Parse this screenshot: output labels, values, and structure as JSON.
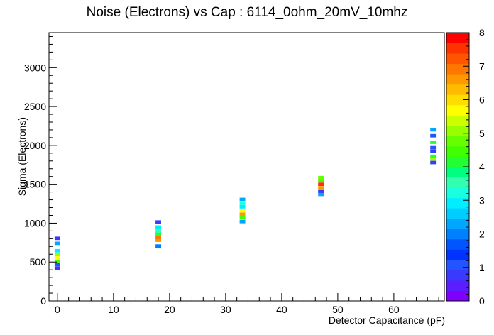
{
  "chart_data": {
    "type": "heatmap",
    "title": "Noise (Electrons) vs Cap : 6114_0ohm_20mV_10mhz",
    "xlabel": "Detector Capacitance (pF)",
    "ylabel": "Sigma (Electrons)",
    "xlim": [
      -1.5,
      69
    ],
    "ylim": [
      0,
      3450
    ],
    "x_ticks": [
      0,
      10,
      20,
      30,
      40,
      50,
      60
    ],
    "y_ticks": [
      0,
      500,
      1000,
      1500,
      2000,
      2500,
      3000
    ],
    "z_range": [
      0,
      8
    ],
    "z_ticks": [
      0,
      1,
      2,
      3,
      4,
      5,
      6,
      7,
      8
    ],
    "bin_width_x": 1.0,
    "bin_height_y": 44,
    "columns": [
      {
        "x": 0,
        "bins": [
          {
            "y": 420,
            "z": 0.8
          },
          {
            "y": 465,
            "z": 1.0
          },
          {
            "y": 510,
            "z": 4.5
          },
          {
            "y": 560,
            "z": 5.8
          },
          {
            "y": 600,
            "z": 5.2
          },
          {
            "y": 645,
            "z": 3.0
          },
          {
            "y": 740,
            "z": 2.3
          },
          {
            "y": 805,
            "z": 0.9
          }
        ]
      },
      {
        "x": 18,
        "bins": [
          {
            "y": 705,
            "z": 2.1
          },
          {
            "y": 780,
            "z": 6.7
          },
          {
            "y": 815,
            "z": 6.9
          },
          {
            "y": 860,
            "z": 4.2
          },
          {
            "y": 900,
            "z": 3.5
          },
          {
            "y": 950,
            "z": 2.8
          },
          {
            "y": 1015,
            "z": 0.9
          }
        ]
      },
      {
        "x": 33,
        "bins": [
          {
            "y": 1020,
            "z": 2.2
          },
          {
            "y": 1070,
            "z": 4.6
          },
          {
            "y": 1115,
            "z": 6.7
          },
          {
            "y": 1160,
            "z": 5.8
          },
          {
            "y": 1210,
            "z": 2.8
          },
          {
            "y": 1255,
            "z": 3.3
          },
          {
            "y": 1305,
            "z": 2.2
          }
        ]
      },
      {
        "x": 47,
        "bins": [
          {
            "y": 1370,
            "z": 2.3
          },
          {
            "y": 1410,
            "z": 0.9
          },
          {
            "y": 1455,
            "z": 6.6
          },
          {
            "y": 1500,
            "z": 7.6
          },
          {
            "y": 1545,
            "z": 4.5
          },
          {
            "y": 1585,
            "z": 4.8
          }
        ]
      },
      {
        "x": 67,
        "bins": [
          {
            "y": 1780,
            "z": 0.9
          },
          {
            "y": 1825,
            "z": 5.2
          },
          {
            "y": 1860,
            "z": 4.0
          },
          {
            "y": 1925,
            "z": 0.8
          },
          {
            "y": 1970,
            "z": 1.0
          },
          {
            "y": 2040,
            "z": 4.3
          },
          {
            "y": 2125,
            "z": 1.0
          },
          {
            "y": 2200,
            "z": 2.3
          }
        ]
      }
    ],
    "palette": [
      "#7f00ff",
      "#5a1fff",
      "#3a3aff",
      "#2255ff",
      "#0033ff",
      "#0055ff",
      "#0080ff",
      "#00a6ff",
      "#00ccff",
      "#00eeff",
      "#19ffe0",
      "#33ffb0",
      "#00ff80",
      "#22ff33",
      "#40ff00",
      "#66ff00",
      "#99ff00",
      "#ccff00",
      "#ffff00",
      "#ffdd00",
      "#ffbb00",
      "#ff9900",
      "#ff7700",
      "#ff5500",
      "#ff3300",
      "#ff0000"
    ]
  }
}
